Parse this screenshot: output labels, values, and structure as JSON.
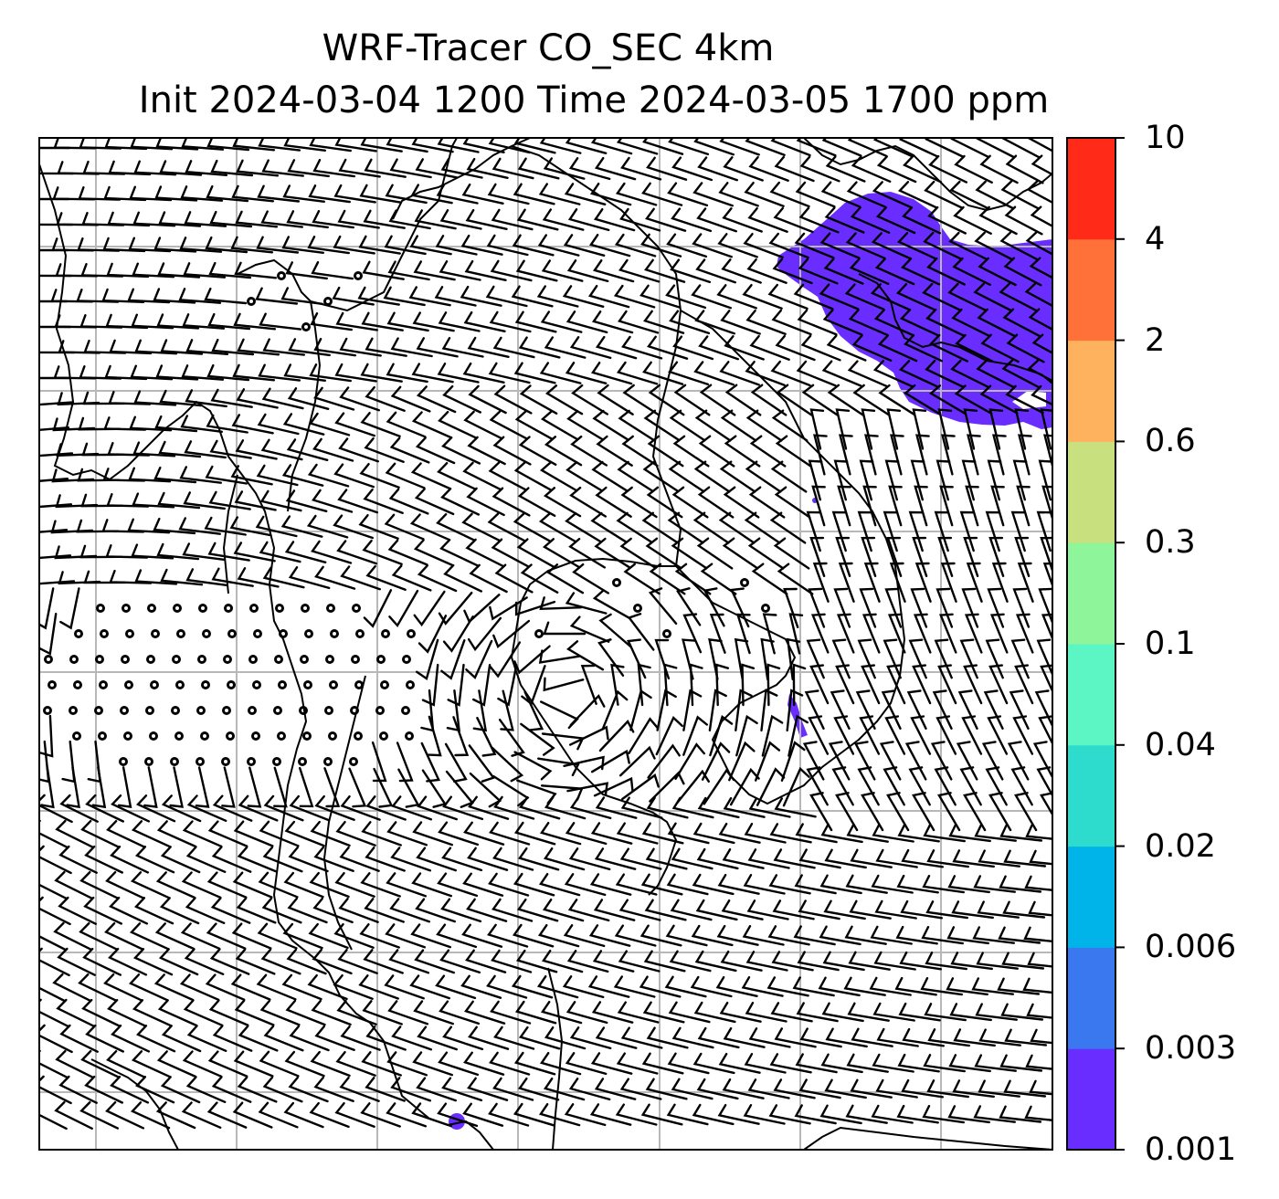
{
  "title_line1": "WRF-Tracer CO_SEC 4km",
  "title_line2": "Init 2024-03-04 1200 Time 2024-03-05 1700 ppm",
  "colorbar": {
    "levels": [
      "0.001",
      "0.003",
      "0.006",
      "0.02",
      "0.04",
      "0.1",
      "0.3",
      "0.6",
      "2",
      "4",
      "10"
    ],
    "colors": [
      "#6a2dff",
      "#3a78f0",
      "#00b4ea",
      "#2ddccc",
      "#5cf5c4",
      "#8ef59a",
      "#c9e07f",
      "#ffb25e",
      "#ff7138",
      "#ff2a18"
    ]
  },
  "tracer_fill_color": "#6a2dff",
  "grid_color": "#b8b8b8",
  "map_features": [
    "coastlines",
    "wind-barbs",
    "lat-lon-gridlines",
    "tracer-contours"
  ]
}
